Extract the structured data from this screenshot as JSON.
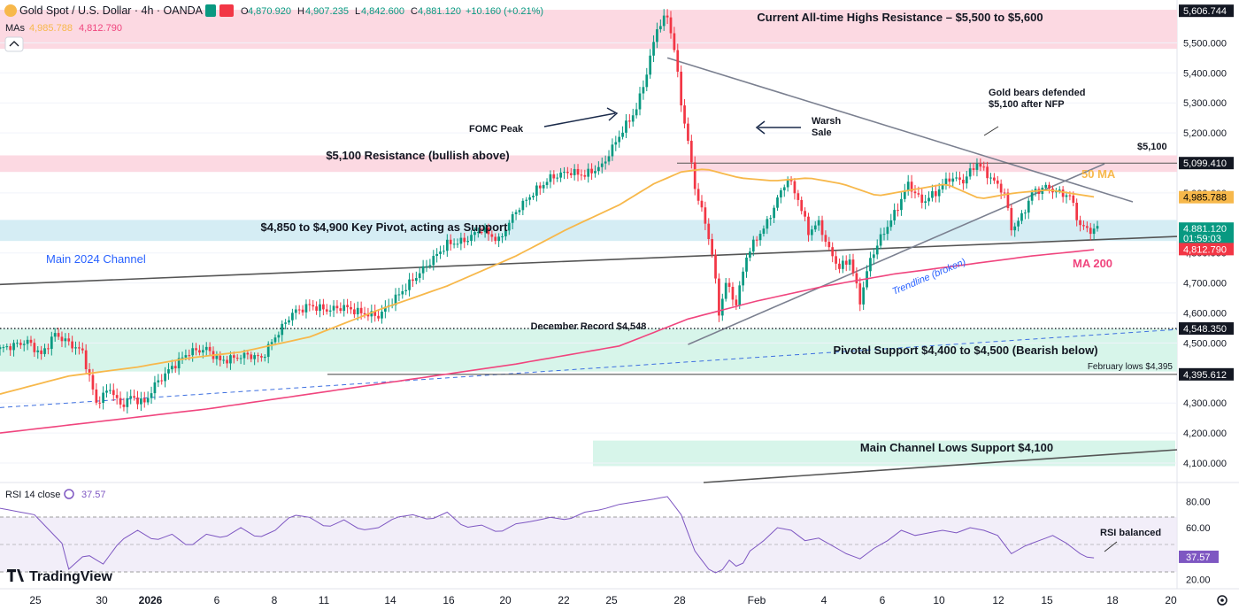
{
  "header": {
    "symbol": "Gold Spot / U.S. Dollar · 4h · OANDA",
    "o_label": "O",
    "o_value": "4,870.920",
    "h_label": "H",
    "h_value": "4,907.235",
    "l_label": "L",
    "l_value": "4,842.600",
    "c_label": "C",
    "c_value": "4,881.120",
    "change": "+10.160 (+0.21%)",
    "mas_label": "MAs",
    "ma50_value": "4,985.788",
    "ma200_value": "4,812.790"
  },
  "colors": {
    "up": "#089981",
    "down": "#f23645",
    "ma50": "#f7b84b",
    "ma200": "#f0457e",
    "zone_red": "#fcd9e2",
    "zone_green": "#d7f5ea",
    "zone_blue": "#d5edf4",
    "channel": "#555555",
    "triangle": "#7b8090",
    "rsi": "#7e57c2"
  },
  "zones": [
    {
      "label": "Current All-time Highs Resistance – $5,500 to $5,600",
      "low": 5480,
      "high": 5610,
      "color": "zone_red"
    },
    {
      "label": "$5,100 Resistance (bullish above)",
      "low": 5070,
      "high": 5125,
      "color": "zone_red"
    },
    {
      "label": "$4,850 to $4,900 Key Pivot, acting as Support",
      "low": 4840,
      "high": 4910,
      "color": "zone_blue"
    },
    {
      "label": "Pivotal Support $4,400 to $4,500 (Bearish below)",
      "low": 4405,
      "high": 4548,
      "color": "zone_green"
    },
    {
      "label": "Main Channel Lows Support $4,100",
      "low": 4090,
      "high": 4175,
      "color": "zone_green"
    }
  ],
  "annotations": {
    "main_channel": "Main 2024 Channel",
    "fomc": "FOMC Peak",
    "warsh": "Warsh\nSale",
    "gold_bears": "Gold bears defended\n$5,100 after NFP",
    "level_5100": "$5,100",
    "ma50": "50 MA",
    "ma200": "MA 200",
    "trendline": "Trendline (broken)",
    "december": "December Record $4,548",
    "feb_lows": "February lows $4,395",
    "rsi_balanced": "RSI balanced"
  },
  "axis": {
    "price_ticks": [
      "5,500.000",
      "5,400.000",
      "5,300.000",
      "5,200.000",
      "4,700.000",
      "4,600.000",
      "4,500.000",
      "4,300.000",
      "4,200.000",
      "4,100.000"
    ],
    "price_tick_values": [
      5500,
      5400,
      5300,
      5200,
      4700,
      4600,
      4500,
      4300,
      4200,
      4100
    ],
    "partial_ticks": [
      "5,000.000",
      "4,800.000"
    ],
    "partial_tick_values": [
      5000,
      4800
    ],
    "price_labels": [
      {
        "text": "5,606.744",
        "value": 5606.744,
        "bg": "#131722",
        "fg": "#ffffff"
      },
      {
        "text": "5,099.410",
        "value": 5099.41,
        "bg": "#131722",
        "fg": "#ffffff"
      },
      {
        "text": "4,985.788",
        "value": 4985.788,
        "bg": "#f7b84b",
        "fg": "#000000"
      },
      {
        "text": "4,881.120",
        "value": 4881.12,
        "bg": "#089981",
        "fg": "#ffffff"
      },
      {
        "text": "01:59:03",
        "value": 4850,
        "bg": "#089981",
        "fg": "#ffffff"
      },
      {
        "text": "4,812.790",
        "value": 4812.79,
        "bg": "#f23645",
        "fg": "#ffffff"
      },
      {
        "text": "4,548.350",
        "value": 4548.35,
        "bg": "#131722",
        "fg": "#ffffff"
      },
      {
        "text": "4,395.612",
        "value": 4395.612,
        "bg": "#131722",
        "fg": "#ffffff"
      }
    ],
    "rsi_ticks": [
      "80.00",
      "60.00",
      "20.00"
    ],
    "rsi_tick_values": [
      80,
      60,
      20
    ],
    "rsi_value_label": "37.57",
    "dates": [
      "25",
      "30",
      "2026",
      "6",
      "8",
      "11",
      "14",
      "16",
      "20",
      "22",
      "25",
      "28",
      "Feb",
      "4",
      "6",
      "10",
      "12",
      "15",
      "18",
      "20"
    ]
  },
  "rsi": {
    "label": "RSI 14 close",
    "value": "37.57"
  },
  "branding": {
    "logo": "TradingView"
  },
  "chart_data": {
    "type": "candlestick",
    "title": "Gold Spot / U.S. Dollar · 4h · OANDA",
    "ylim": [
      4050,
      5625
    ],
    "rsi_ylim": [
      15,
      88
    ],
    "price_path": [
      [
        0,
        4480
      ],
      [
        8,
        4505
      ],
      [
        12,
        4460
      ],
      [
        16,
        4530
      ],
      [
        20,
        4500
      ],
      [
        24,
        4470
      ],
      [
        28,
        4300
      ],
      [
        32,
        4350
      ],
      [
        35,
        4290
      ],
      [
        38,
        4320
      ],
      [
        42,
        4300
      ],
      [
        45,
        4360
      ],
      [
        50,
        4420
      ],
      [
        55,
        4470
      ],
      [
        60,
        4480
      ],
      [
        64,
        4440
      ],
      [
        68,
        4450
      ],
      [
        72,
        4460
      ],
      [
        76,
        4450
      ],
      [
        80,
        4520
      ],
      [
        85,
        4600
      ],
      [
        90,
        4625
      ],
      [
        95,
        4610
      ],
      [
        100,
        4620
      ],
      [
        105,
        4600
      ],
      [
        110,
        4590
      ],
      [
        115,
        4650
      ],
      [
        120,
        4710
      ],
      [
        125,
        4770
      ],
      [
        130,
        4830
      ],
      [
        135,
        4840
      ],
      [
        140,
        4880
      ],
      [
        145,
        4840
      ],
      [
        150,
        4940
      ],
      [
        155,
        5000
      ],
      [
        160,
        5050
      ],
      [
        165,
        5070
      ],
      [
        170,
        5060
      ],
      [
        175,
        5090
      ],
      [
        180,
        5190
      ],
      [
        185,
        5280
      ],
      [
        188,
        5400
      ],
      [
        191,
        5550
      ],
      [
        194,
        5590
      ],
      [
        196,
        5480
      ],
      [
        198,
        5300
      ],
      [
        200,
        5170
      ],
      [
        202,
        5020
      ],
      [
        205,
        4900
      ],
      [
        207,
        4800
      ],
      [
        209,
        4600
      ],
      [
        211,
        4700
      ],
      [
        214,
        4630
      ],
      [
        217,
        4790
      ],
      [
        220,
        4850
      ],
      [
        223,
        4900
      ],
      [
        226,
        4980
      ],
      [
        229,
        5050
      ],
      [
        232,
        4980
      ],
      [
        235,
        4870
      ],
      [
        238,
        4900
      ],
      [
        241,
        4810
      ],
      [
        244,
        4750
      ],
      [
        247,
        4780
      ],
      [
        250,
        4640
      ],
      [
        253,
        4780
      ],
      [
        256,
        4850
      ],
      [
        260,
        4930
      ],
      [
        264,
        5030
      ],
      [
        268,
        4970
      ],
      [
        272,
        5000
      ],
      [
        276,
        5050
      ],
      [
        280,
        5040
      ],
      [
        284,
        5100
      ],
      [
        288,
        5050
      ],
      [
        292,
        5000
      ],
      [
        294,
        4880
      ],
      [
        297,
        4920
      ],
      [
        300,
        5000
      ],
      [
        304,
        5020
      ],
      [
        308,
        5000
      ],
      [
        311,
        4990
      ],
      [
        314,
        4890
      ],
      [
        317,
        4875
      ],
      [
        319,
        4881
      ]
    ],
    "ma50_path": [
      [
        0,
        4330
      ],
      [
        20,
        4390
      ],
      [
        40,
        4420
      ],
      [
        55,
        4450
      ],
      [
        70,
        4470
      ],
      [
        90,
        4520
      ],
      [
        110,
        4610
      ],
      [
        130,
        4690
      ],
      [
        150,
        4790
      ],
      [
        165,
        4880
      ],
      [
        180,
        4960
      ],
      [
        190,
        5030
      ],
      [
        198,
        5070
      ],
      [
        205,
        5080
      ],
      [
        215,
        5050
      ],
      [
        225,
        5040
      ],
      [
        235,
        5050
      ],
      [
        245,
        5030
      ],
      [
        255,
        4990
      ],
      [
        265,
        5010
      ],
      [
        275,
        5030
      ],
      [
        285,
        4980
      ],
      [
        295,
        5000
      ],
      [
        305,
        5010
      ],
      [
        319,
        4985
      ]
    ],
    "ma200_path": [
      [
        0,
        4200
      ],
      [
        30,
        4240
      ],
      [
        60,
        4280
      ],
      [
        90,
        4330
      ],
      [
        120,
        4380
      ],
      [
        150,
        4430
      ],
      [
        180,
        4490
      ],
      [
        200,
        4580
      ],
      [
        220,
        4640
      ],
      [
        240,
        4690
      ],
      [
        260,
        4730
      ],
      [
        280,
        4760
      ],
      [
        300,
        4790
      ],
      [
        319,
        4812
      ]
    ],
    "rsi_path": [
      [
        0,
        75
      ],
      [
        10,
        70
      ],
      [
        18,
        48
      ],
      [
        20,
        28
      ],
      [
        25,
        40
      ],
      [
        30,
        32
      ],
      [
        35,
        50
      ],
      [
        40,
        58
      ],
      [
        45,
        50
      ],
      [
        50,
        55
      ],
      [
        55,
        45
      ],
      [
        60,
        55
      ],
      [
        65,
        52
      ],
      [
        70,
        60
      ],
      [
        75,
        52
      ],
      [
        80,
        58
      ],
      [
        85,
        70
      ],
      [
        90,
        68
      ],
      [
        95,
        60
      ],
      [
        100,
        66
      ],
      [
        105,
        58
      ],
      [
        110,
        60
      ],
      [
        115,
        68
      ],
      [
        120,
        70
      ],
      [
        125,
        66
      ],
      [
        130,
        72
      ],
      [
        135,
        60
      ],
      [
        140,
        62
      ],
      [
        145,
        56
      ],
      [
        150,
        63
      ],
      [
        155,
        65
      ],
      [
        160,
        68
      ],
      [
        165,
        66
      ],
      [
        170,
        72
      ],
      [
        175,
        74
      ],
      [
        180,
        78
      ],
      [
        185,
        80
      ],
      [
        190,
        82
      ],
      [
        194,
        84
      ],
      [
        198,
        70
      ],
      [
        202,
        42
      ],
      [
        206,
        28
      ],
      [
        209,
        24
      ],
      [
        212,
        35
      ],
      [
        215,
        28
      ],
      [
        218,
        42
      ],
      [
        222,
        50
      ],
      [
        226,
        60
      ],
      [
        230,
        58
      ],
      [
        234,
        50
      ],
      [
        238,
        52
      ],
      [
        242,
        46
      ],
      [
        246,
        40
      ],
      [
        250,
        36
      ],
      [
        254,
        44
      ],
      [
        258,
        50
      ],
      [
        262,
        58
      ],
      [
        266,
        54
      ],
      [
        270,
        56
      ],
      [
        274,
        58
      ],
      [
        278,
        56
      ],
      [
        282,
        60
      ],
      [
        286,
        58
      ],
      [
        290,
        54
      ],
      [
        294,
        40
      ],
      [
        298,
        46
      ],
      [
        302,
        50
      ],
      [
        306,
        54
      ],
      [
        310,
        48
      ],
      [
        314,
        40
      ],
      [
        317,
        36
      ],
      [
        319,
        37.57
      ]
    ],
    "lines": [
      {
        "name": "Main 2024 Channel upper",
        "from": [
          0,
          4695
        ],
        "to": [
          319,
          4855
        ]
      },
      {
        "name": "Main 2024 Channel lower",
        "from": [
          0,
          4285
        ],
        "to": [
          319,
          4545
        ]
      },
      {
        "name": "Triangle upper",
        "from": [
          194,
          5450
        ],
        "to": [
          319,
          4845
        ]
      },
      {
        "name": "Triangle lower",
        "from": [
          200,
          4495
        ],
        "to": [
          319,
          4910
        ]
      }
    ]
  }
}
